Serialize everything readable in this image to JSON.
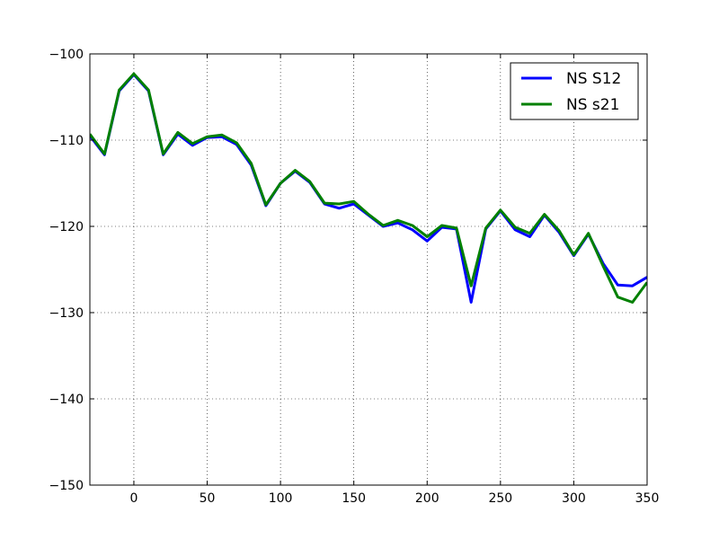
{
  "chart_data": {
    "type": "line",
    "title": "",
    "xlabel": "",
    "ylabel": "",
    "xlim": [
      -30,
      350
    ],
    "ylim": [
      -150,
      -100
    ],
    "grid": true,
    "legend_position": "top-right",
    "x_ticks": [
      0,
      50,
      100,
      150,
      200,
      250,
      300,
      350
    ],
    "x_tick_labels": [
      "0",
      "50",
      "100",
      "150",
      "200",
      "250",
      "300",
      "350"
    ],
    "y_ticks": [
      -150,
      -140,
      -130,
      -120,
      -110,
      -100
    ],
    "y_tick_labels": [
      "−150",
      "−140",
      "−130",
      "−120",
      "−110",
      "−100"
    ],
    "x": [
      -30,
      -20,
      -10,
      0,
      10,
      20,
      30,
      40,
      50,
      60,
      70,
      80,
      90,
      100,
      110,
      120,
      130,
      140,
      150,
      160,
      170,
      180,
      190,
      200,
      210,
      220,
      230,
      240,
      250,
      260,
      270,
      280,
      290,
      300,
      310,
      320,
      330,
      340,
      350
    ],
    "series": [
      {
        "name": "NS S12",
        "color": "#0000ff",
        "values": [
          -109.5,
          -111.7,
          -104.3,
          -102.4,
          -104.3,
          -111.7,
          -109.3,
          -110.6,
          -109.7,
          -109.6,
          -110.5,
          -112.9,
          -117.6,
          -115.0,
          -113.6,
          -114.9,
          -117.4,
          -117.9,
          -117.4,
          -118.7,
          -120.0,
          -119.6,
          -120.4,
          -121.7,
          -120.1,
          -120.3,
          -128.8,
          -120.3,
          -118.2,
          -120.4,
          -121.2,
          -118.7,
          -120.7,
          -123.4,
          -120.9,
          -124.3,
          -126.8,
          -126.9,
          -125.9
        ]
      },
      {
        "name": "NS s21",
        "color": "#008000",
        "values": [
          -109.3,
          -111.6,
          -104.2,
          -102.3,
          -104.2,
          -111.6,
          -109.1,
          -110.4,
          -109.6,
          -109.4,
          -110.3,
          -112.7,
          -117.5,
          -115.0,
          -113.5,
          -114.8,
          -117.3,
          -117.4,
          -117.1,
          -118.6,
          -119.9,
          -119.3,
          -119.9,
          -121.2,
          -119.9,
          -120.2,
          -126.9,
          -120.2,
          -118.1,
          -120.1,
          -120.8,
          -118.6,
          -120.5,
          -123.3,
          -120.8,
          -124.6,
          -128.2,
          -128.8,
          -126.5
        ]
      }
    ]
  }
}
